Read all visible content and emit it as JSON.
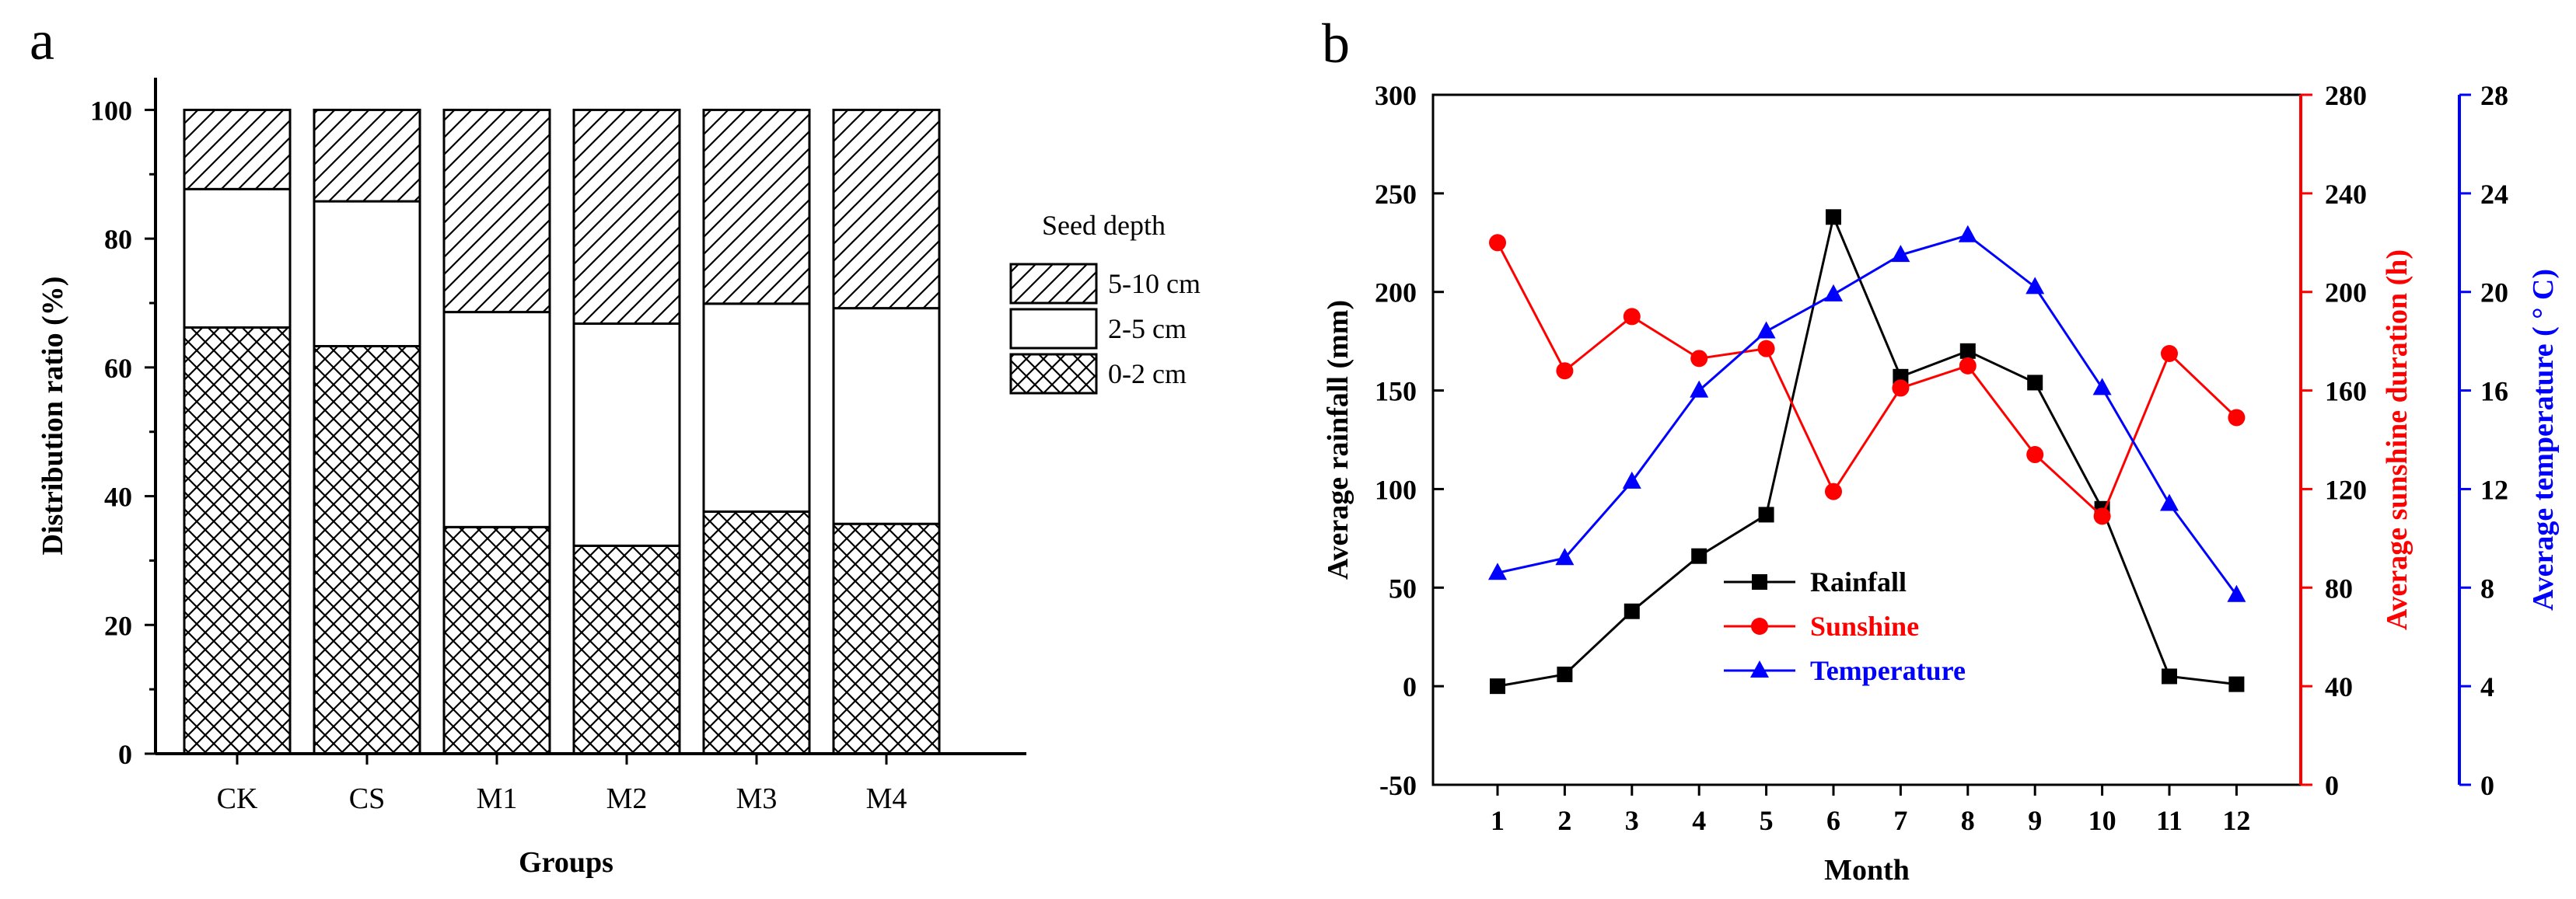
{
  "chart_data": [
    {
      "panel": "a",
      "type": "bar",
      "stacked": true,
      "categories": [
        "CK",
        "CS",
        "M1",
        "M2",
        "M3",
        "M4"
      ],
      "series": [
        {
          "name": "0-2 cm",
          "pattern": "crosshatch",
          "values": [
            66.2,
            63.3,
            35.2,
            32.3,
            37.6,
            35.7
          ]
        },
        {
          "name": "2-5 cm",
          "pattern": "blank",
          "values": [
            21.5,
            22.5,
            33.4,
            34.5,
            32.3,
            33.5
          ]
        },
        {
          "name": "5-10 cm",
          "pattern": "diagonal",
          "values": [
            12.3,
            14.2,
            31.4,
            33.2,
            30.1,
            30.8
          ]
        }
      ],
      "xlabel": "Groups",
      "ylabel": "Distribution ratio (%)",
      "ylim": [
        0,
        105
      ],
      "yticks": [
        0,
        20,
        40,
        60,
        80,
        100
      ],
      "legend": {
        "title": "Seed depth",
        "placement": "right",
        "order": [
          "5-10 cm",
          "2-5 cm",
          "0-2 cm"
        ]
      }
    },
    {
      "panel": "b",
      "type": "line",
      "x": [
        1,
        2,
        3,
        4,
        5,
        6,
        7,
        8,
        9,
        10,
        11,
        12
      ],
      "xlabel": "Month",
      "series": [
        {
          "name": "Rainfall",
          "axis": "left",
          "marker": "square",
          "color": "#000000",
          "values": [
            0,
            6,
            38,
            66,
            87,
            238,
            157,
            170,
            154,
            90,
            5,
            1
          ]
        },
        {
          "name": "Sunshine",
          "axis": "right1",
          "marker": "circle",
          "color": "#ff0000",
          "values": [
            220,
            168,
            190,
            173,
            177,
            119,
            161,
            170,
            134,
            109,
            175,
            149
          ]
        },
        {
          "name": "Temperature",
          "axis": "right2",
          "marker": "triangle",
          "color": "#0000ff",
          "values": [
            8.6,
            9.2,
            12.3,
            16.0,
            18.4,
            19.9,
            21.5,
            22.3,
            20.2,
            16.1,
            11.4,
            7.7
          ]
        }
      ],
      "axes": {
        "left": {
          "label": "Average rainfall (mm)",
          "ylim": [
            -50,
            300
          ],
          "ticks": [
            -50,
            0,
            50,
            100,
            150,
            200,
            250,
            300
          ],
          "color": "#000000"
        },
        "right1": {
          "label": "Average sunshine duration (h)",
          "ylim": [
            0,
            280
          ],
          "ticks": [
            0,
            40,
            80,
            120,
            160,
            200,
            240,
            280
          ],
          "color": "#ff0000"
        },
        "right2": {
          "label": "Average temperature ( ° C)",
          "ylim": [
            0,
            28
          ],
          "ticks": [
            0,
            4,
            8,
            12,
            16,
            20,
            24,
            28
          ],
          "color": "#0000ff"
        }
      },
      "legend": {
        "placement": "lower-left"
      }
    }
  ]
}
